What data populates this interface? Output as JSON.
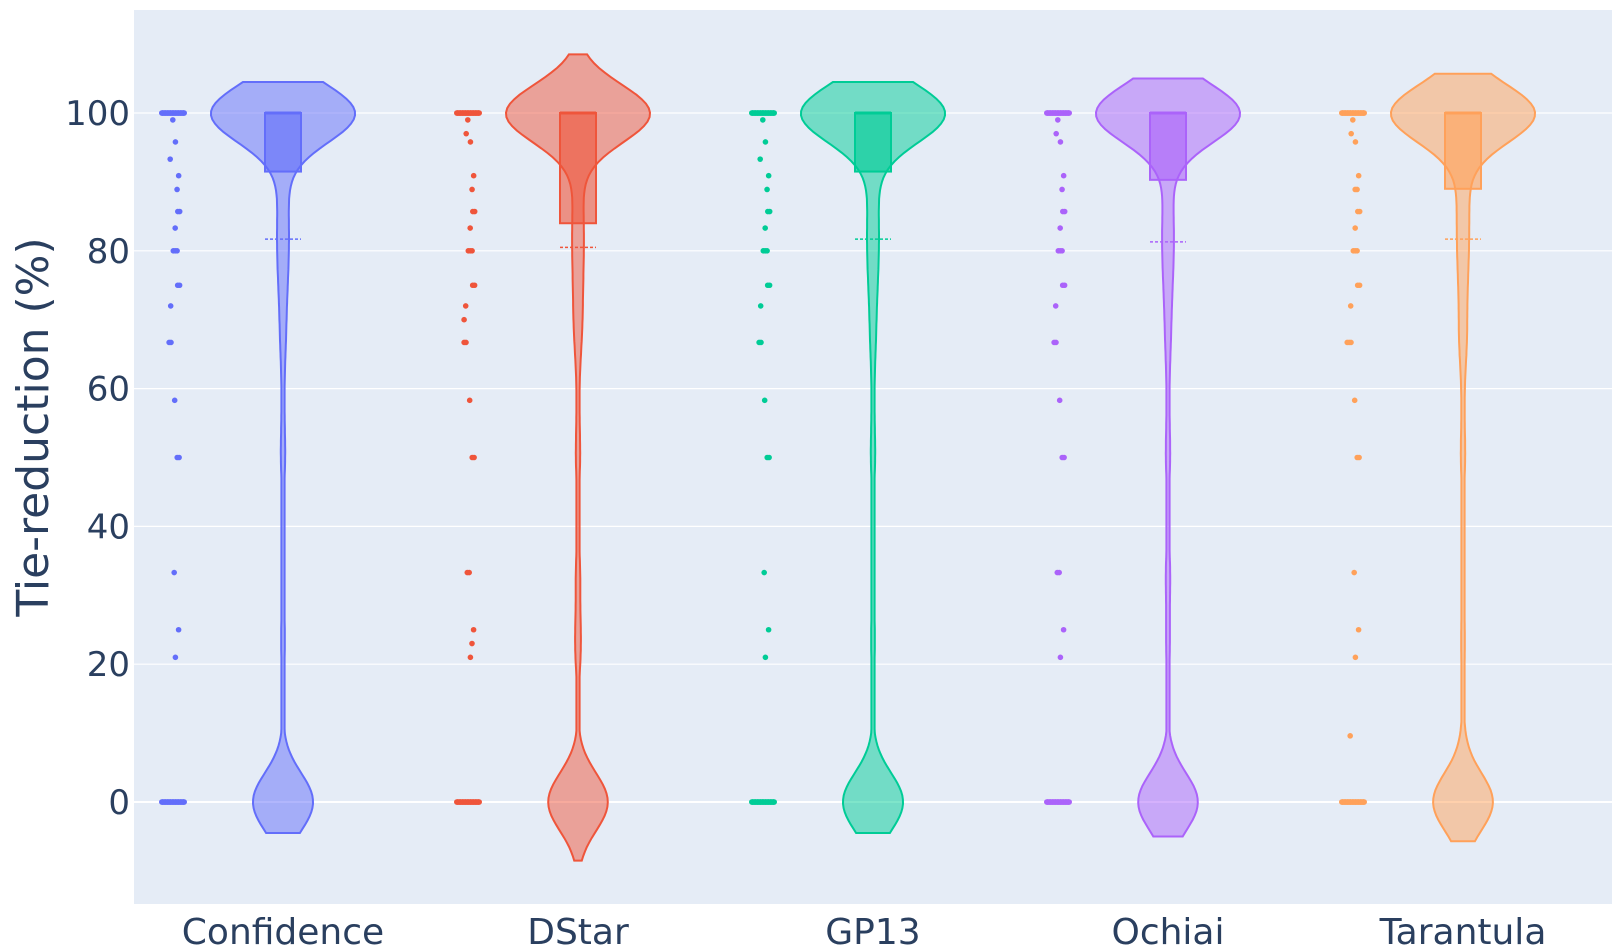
{
  "chart_data": {
    "type": "violin",
    "title": "",
    "xlabel": "",
    "ylabel": "Tie-reduction (%)",
    "ylim": [
      -15,
      115
    ],
    "yticks": [
      0,
      20,
      40,
      60,
      80,
      100
    ],
    "grid": true,
    "background": "#e5ecf6",
    "categories": [
      "Confidence",
      "DStar",
      "GP13",
      "Ochiai",
      "Tarantula"
    ],
    "series": [
      {
        "name": "Confidence",
        "color": "#636efa",
        "box": {
          "q1": 91.5,
          "median": 100,
          "q3": 100
        },
        "mean": 81.7,
        "range": [
          -4.5,
          104.5
        ],
        "points": [
          0,
          0,
          0,
          0,
          0,
          21,
          25,
          33.3,
          50,
          50,
          58.3,
          66.7,
          66.7,
          72,
          75,
          75,
          80,
          80,
          80,
          83.3,
          85.7,
          85.7,
          88.9,
          90.9,
          93.3,
          95.8,
          99,
          100,
          100,
          100,
          100,
          100
        ]
      },
      {
        "name": "DStar",
        "color": "#ef553b",
        "box": {
          "q1": 84,
          "median": 100,
          "q3": 100
        },
        "mean": 80.5,
        "range": [
          -8.5,
          108.5
        ],
        "points": [
          0,
          0,
          0,
          0,
          0,
          21,
          23,
          25,
          33.3,
          33.3,
          50,
          50,
          58.3,
          66.7,
          66.7,
          70,
          72,
          75,
          75,
          80,
          80,
          80,
          83.3,
          85.7,
          85.7,
          88.9,
          90.9,
          95.8,
          97,
          99,
          100,
          100,
          100,
          100,
          100
        ]
      },
      {
        "name": "GP13",
        "color": "#00cc96",
        "box": {
          "q1": 91.5,
          "median": 100,
          "q3": 100
        },
        "mean": 81.7,
        "range": [
          -4.5,
          104.5
        ],
        "points": [
          0,
          0,
          0,
          0,
          0,
          21,
          25,
          33.3,
          50,
          50,
          58.3,
          66.7,
          66.7,
          72,
          75,
          75,
          80,
          80,
          80,
          83.3,
          85.7,
          85.7,
          88.9,
          90.9,
          93.3,
          95.8,
          99,
          100,
          100,
          100,
          100,
          100
        ]
      },
      {
        "name": "Ochiai",
        "color": "#ab63fa",
        "box": {
          "q1": 90.3,
          "median": 100,
          "q3": 100
        },
        "mean": 81.3,
        "range": [
          -5,
          105
        ],
        "points": [
          0,
          0,
          0,
          0,
          0,
          21,
          25,
          33.3,
          33.3,
          50,
          50,
          58.3,
          66.7,
          66.7,
          72,
          75,
          75,
          80,
          80,
          80,
          83.3,
          85.7,
          85.7,
          88.9,
          90.9,
          95.8,
          97,
          99,
          100,
          100,
          100,
          100,
          100
        ]
      },
      {
        "name": "Tarantula",
        "color": "#ffa15a",
        "box": {
          "q1": 89,
          "median": 100,
          "q3": 100
        },
        "mean": 81.7,
        "range": [
          -5.7,
          105.7
        ],
        "points": [
          0,
          0,
          0,
          0,
          0,
          9.6,
          21,
          25,
          33.3,
          50,
          50,
          58.3,
          66.7,
          66.7,
          66.7,
          72,
          75,
          75,
          80,
          80,
          80,
          83.3,
          85.7,
          85.7,
          88.9,
          88.9,
          90.9,
          95.8,
          97,
          99,
          100,
          100,
          100,
          100,
          100
        ]
      }
    ]
  }
}
